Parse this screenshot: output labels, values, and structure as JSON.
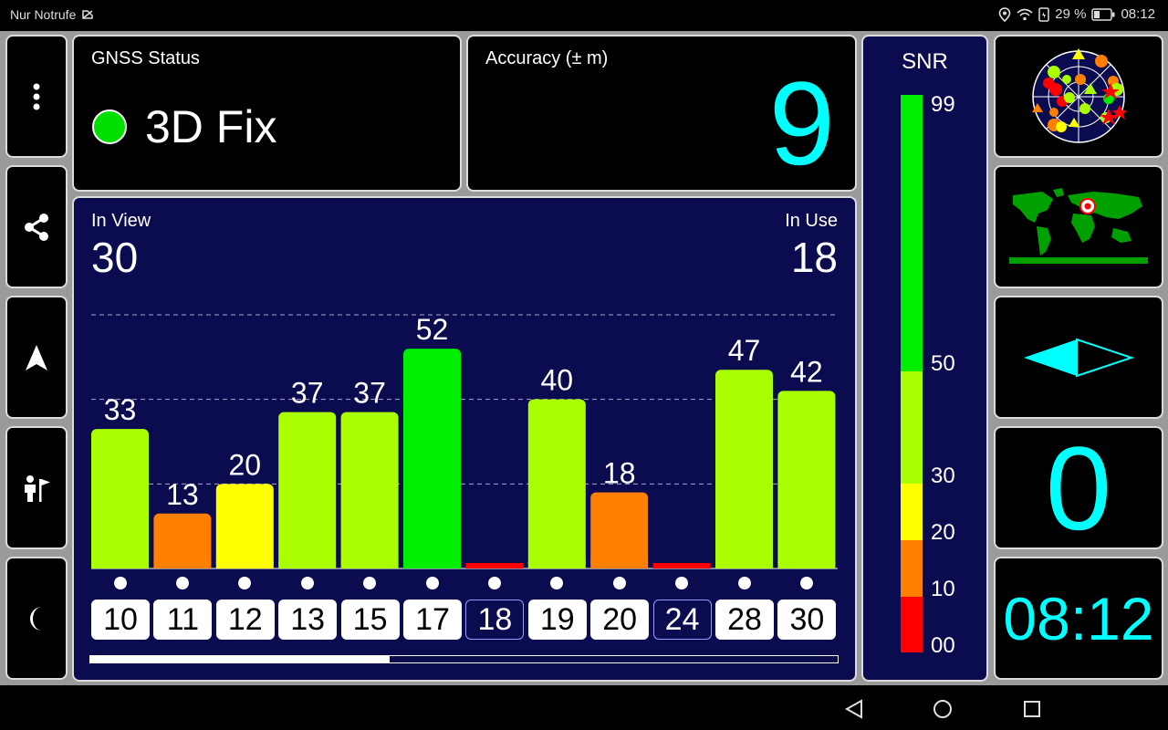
{
  "status_bar": {
    "left_text": "Nur Notrufe",
    "battery_percent": "29 %",
    "time": "08:12"
  },
  "side_buttons": [
    {
      "icon": "more-vert-icon"
    },
    {
      "icon": "share-icon"
    },
    {
      "icon": "navigation-arrow-icon"
    },
    {
      "icon": "person-flag-icon"
    },
    {
      "icon": "moon-icon"
    }
  ],
  "gnss_status": {
    "title": "GNSS Status",
    "value": "3D Fix",
    "indicator_color": "#00e000"
  },
  "accuracy": {
    "title": "Accuracy (± m)",
    "value": "9",
    "color": "#00ffff"
  },
  "satellites": {
    "in_view_label": "In View",
    "in_view": "30",
    "in_use_label": "In Use",
    "in_use": "18",
    "scroll_fraction": 0.4
  },
  "chart_data": {
    "type": "bar",
    "categories": [
      "10",
      "11",
      "12",
      "13",
      "15",
      "17",
      "18",
      "19",
      "20",
      "24",
      "28",
      "30"
    ],
    "values": [
      33,
      13,
      20,
      37,
      37,
      52,
      0,
      40,
      18,
      0,
      47,
      42
    ],
    "value_labels": [
      "33",
      "13",
      "20",
      "37",
      "37",
      "52",
      "",
      "40",
      "18",
      "",
      "47",
      "42"
    ],
    "in_use": [
      true,
      true,
      true,
      true,
      true,
      true,
      false,
      true,
      true,
      false,
      true,
      true
    ],
    "ylim": [
      0,
      60
    ],
    "grid_values": [
      20,
      40,
      60
    ],
    "colors": {
      "below_10": "#ff0000",
      "10_20": "#ff8000",
      "20_30": "#ffff00",
      "30_50": "#aaff00",
      "50_99": "#00ee00"
    }
  },
  "snr_scale": {
    "title": "SNR",
    "ticks": [
      "99",
      "50",
      "30",
      "20",
      "10",
      "00"
    ],
    "colors": [
      "#00ee00",
      "#aaff00",
      "#ffff00",
      "#ff8000",
      "#ff0000"
    ]
  },
  "right_panels": {
    "sky_view_icon": "sky-view-icon",
    "world_map_icon": "world-map-icon",
    "compass_icon": "compass-needle-icon",
    "speed": "0",
    "clock": "08:12",
    "accent_color": "#00ffff"
  },
  "nav_bar": {
    "back_icon": "back-triangle-icon",
    "home_icon": "home-circle-icon",
    "recents_icon": "recents-square-icon"
  }
}
